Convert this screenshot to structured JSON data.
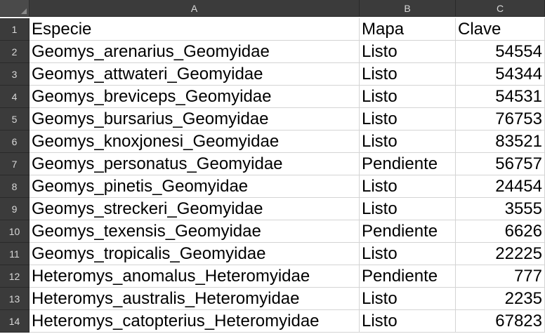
{
  "columns": [
    "A",
    "B",
    "C"
  ],
  "rows": [
    {
      "num": "1",
      "a": "Especie",
      "b": "Mapa",
      "c": "Clave",
      "c_numeric": false
    },
    {
      "num": "2",
      "a": "Geomys_arenarius_Geomyidae",
      "b": "Listo",
      "c": "54554",
      "c_numeric": true
    },
    {
      "num": "3",
      "a": "Geomys_attwateri_Geomyidae",
      "b": "Listo",
      "c": "54344",
      "c_numeric": true
    },
    {
      "num": "4",
      "a": "Geomys_breviceps_Geomyidae",
      "b": "Listo",
      "c": "54531",
      "c_numeric": true
    },
    {
      "num": "5",
      "a": "Geomys_bursarius_Geomyidae",
      "b": "Listo",
      "c": "76753",
      "c_numeric": true
    },
    {
      "num": "6",
      "a": "Geomys_knoxjonesi_Geomyidae",
      "b": "Listo",
      "c": "83521",
      "c_numeric": true
    },
    {
      "num": "7",
      "a": "Geomys_personatus_Geomyidae",
      "b": "Pendiente",
      "c": "56757",
      "c_numeric": true
    },
    {
      "num": "8",
      "a": "Geomys_pinetis_Geomyidae",
      "b": "Listo",
      "c": "24454",
      "c_numeric": true
    },
    {
      "num": "9",
      "a": "Geomys_streckeri_Geomyidae",
      "b": "Listo",
      "c": "3555",
      "c_numeric": true
    },
    {
      "num": "10",
      "a": "Geomys_texensis_Geomyidae",
      "b": "Pendiente",
      "c": "6626",
      "c_numeric": true
    },
    {
      "num": "11",
      "a": "Geomys_tropicalis_Geomyidae",
      "b": "Listo",
      "c": "22225",
      "c_numeric": true
    },
    {
      "num": "12",
      "a": "Heteromys_anomalus_Heteromyidae",
      "b": "Pendiente",
      "c": "777",
      "c_numeric": true
    },
    {
      "num": "13",
      "a": "Heteromys_australis_Heteromyidae",
      "b": "Listo",
      "c": "2235",
      "c_numeric": true
    },
    {
      "num": "14",
      "a": "Heteromys_catopterius_Heteromyidae",
      "b": "Listo",
      "c": "67823",
      "c_numeric": true
    }
  ]
}
